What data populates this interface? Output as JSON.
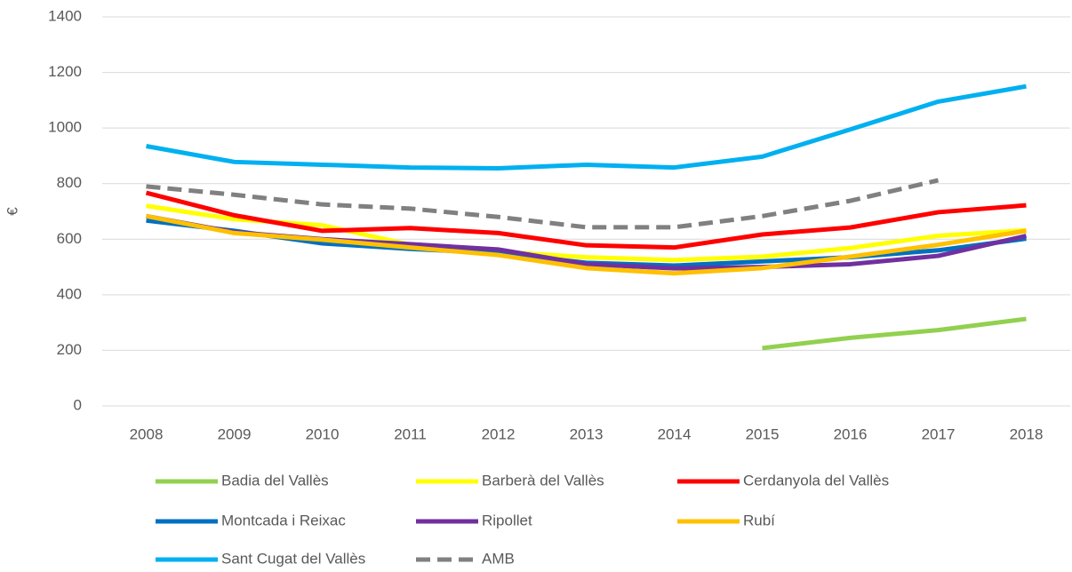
{
  "chart_data": {
    "type": "line",
    "y_label": "€",
    "categories": [
      "2008",
      "2009",
      "2010",
      "2011",
      "2012",
      "2013",
      "2014",
      "2015",
      "2016",
      "2017",
      "2018"
    ],
    "series": [
      {
        "name": "Badia del Vallès",
        "color": "#92d050",
        "values": [
          null,
          null,
          null,
          null,
          null,
          null,
          null,
          208,
          245,
          273,
          313
        ]
      },
      {
        "name": "Barberà del Vallès",
        "color": "#ffff00",
        "values": [
          720,
          672,
          650,
          580,
          555,
          535,
          525,
          537,
          568,
          612,
          632
        ]
      },
      {
        "name": "Cerdanyola del Vallès",
        "color": "#ff0000",
        "values": [
          767,
          686,
          630,
          640,
          622,
          578,
          570,
          617,
          642,
          697,
          722
        ]
      },
      {
        "name": "Montcada i Reixac",
        "color": "#0070c0",
        "values": [
          667,
          630,
          585,
          565,
          550,
          515,
          505,
          520,
          535,
          560,
          602
        ]
      },
      {
        "name": "Ripollet",
        "color": "#7030a0",
        "values": [
          683,
          625,
          600,
          582,
          563,
          510,
          495,
          500,
          510,
          540,
          612
        ]
      },
      {
        "name": "Rubí",
        "color": "#ffc000",
        "values": [
          683,
          622,
          598,
          570,
          543,
          496,
          477,
          496,
          537,
          580,
          630
        ]
      },
      {
        "name": "Sant Cugat del Vallès",
        "color": "#00b0f0",
        "values": [
          935,
          878,
          868,
          858,
          855,
          868,
          858,
          897,
          995,
          1095,
          1150
        ]
      },
      {
        "name": "AMB",
        "color": "#808080",
        "dashed": true,
        "values": [
          790,
          760,
          725,
          710,
          680,
          643,
          643,
          683,
          738,
          812,
          null
        ]
      }
    ],
    "ylim": [
      0,
      1400
    ],
    "yticks": [
      0,
      200,
      400,
      600,
      800,
      1000,
      1200,
      1400
    ],
    "grid": true,
    "legend": "bottom"
  }
}
